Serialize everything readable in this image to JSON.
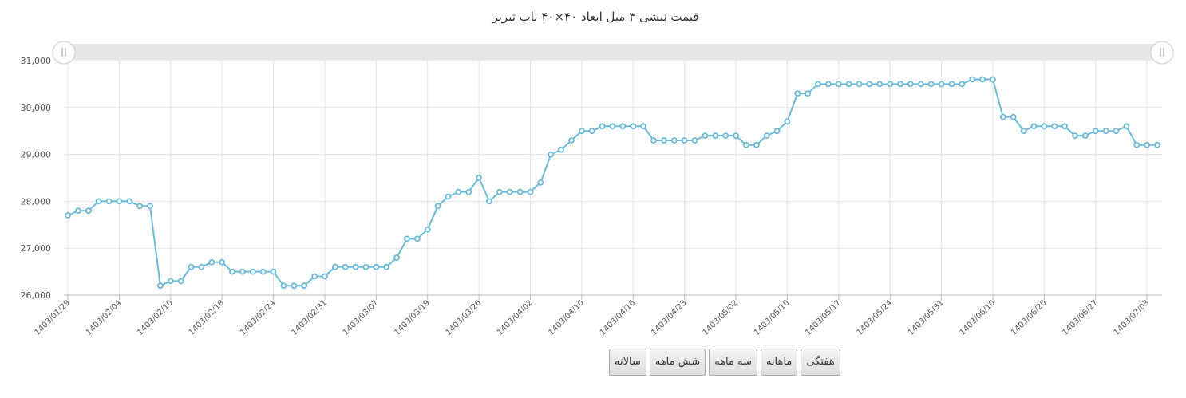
{
  "colors": {
    "line": "#6bbad8",
    "grid": "#e3e3e3",
    "navigator_bg": "#e6e6e6",
    "axis_text": "#555555",
    "handle_icon": "#999999"
  },
  "buttons": [
    {
      "label": "سالانه",
      "name": "range-button-yearly"
    },
    {
      "label": "شش ماهه",
      "name": "range-button-six-months"
    },
    {
      "label": "سه ماهه",
      "name": "range-button-three-months"
    },
    {
      "label": "ماهانه",
      "name": "range-button-monthly"
    },
    {
      "label": "هفتگی",
      "name": "range-button-weekly"
    }
  ],
  "icons": {
    "navigator_handle": "grip-icon"
  },
  "chart_data": {
    "type": "line",
    "title": "قیمت نبشی ۳ میل ابعاد ۴۰×۴۰ ناب تبریز",
    "xlabel": "",
    "ylabel": "",
    "ylim": [
      26000,
      31000
    ],
    "yticks": [
      26000,
      27000,
      28000,
      29000,
      30000,
      31000
    ],
    "ytick_labels": [
      "26,000",
      "27,000",
      "28,000",
      "29,000",
      "30,000",
      "31,000"
    ],
    "grid": true,
    "legend": "none",
    "marker": "circle",
    "xtick_labels": [
      {
        "index": 0,
        "label": "1403/01/29"
      },
      {
        "index": 5,
        "label": "1403/02/04"
      },
      {
        "index": 10,
        "label": "1403/02/10"
      },
      {
        "index": 15,
        "label": "1403/02/18"
      },
      {
        "index": 20,
        "label": "1403/02/24"
      },
      {
        "index": 25,
        "label": "1403/02/31"
      },
      {
        "index": 30,
        "label": "1403/03/07"
      },
      {
        "index": 35,
        "label": "1403/03/19"
      },
      {
        "index": 40,
        "label": "1403/03/26"
      },
      {
        "index": 45,
        "label": "1403/04/02"
      },
      {
        "index": 50,
        "label": "1403/04/10"
      },
      {
        "index": 55,
        "label": "1403/04/16"
      },
      {
        "index": 60,
        "label": "1403/04/23"
      },
      {
        "index": 65,
        "label": "1403/05/02"
      },
      {
        "index": 70,
        "label": "1403/05/10"
      },
      {
        "index": 75,
        "label": "1403/05/17"
      },
      {
        "index": 80,
        "label": "1403/05/24"
      },
      {
        "index": 85,
        "label": "1403/05/31"
      },
      {
        "index": 90,
        "label": "1403/06/10"
      },
      {
        "index": 95,
        "label": "1403/06/20"
      },
      {
        "index": 100,
        "label": "1403/06/27"
      },
      {
        "index": 105,
        "label": "1403/07/03"
      }
    ],
    "series": [
      {
        "values": [
          27700,
          27800,
          27800,
          28000,
          28000,
          28000,
          28000,
          27900,
          27900,
          26200,
          26300,
          26300,
          26600,
          26600,
          26700,
          26700,
          26500,
          26500,
          26500,
          26500,
          26500,
          26200,
          26200,
          26200,
          26400,
          26400,
          26600,
          26600,
          26600,
          26600,
          26600,
          26600,
          26800,
          27200,
          27200,
          27400,
          27900,
          28100,
          28200,
          28200,
          28500,
          28000,
          28200,
          28200,
          28200,
          28200,
          28400,
          29000,
          29100,
          29300,
          29500,
          29500,
          29600,
          29600,
          29600,
          29600,
          29600,
          29300,
          29300,
          29300,
          29300,
          29300,
          29400,
          29400,
          29400,
          29400,
          29200,
          29200,
          29400,
          29500,
          29700,
          30300,
          30300,
          30500,
          30500,
          30500,
          30500,
          30500,
          30500,
          30500,
          30500,
          30500,
          30500,
          30500,
          30500,
          30500,
          30500,
          30500,
          30600,
          30600,
          30600,
          29800,
          29800,
          29500,
          29600,
          29600,
          29600,
          29600,
          29400,
          29400,
          29500,
          29500,
          29500,
          29600,
          29200,
          29200,
          29200
        ]
      }
    ]
  }
}
